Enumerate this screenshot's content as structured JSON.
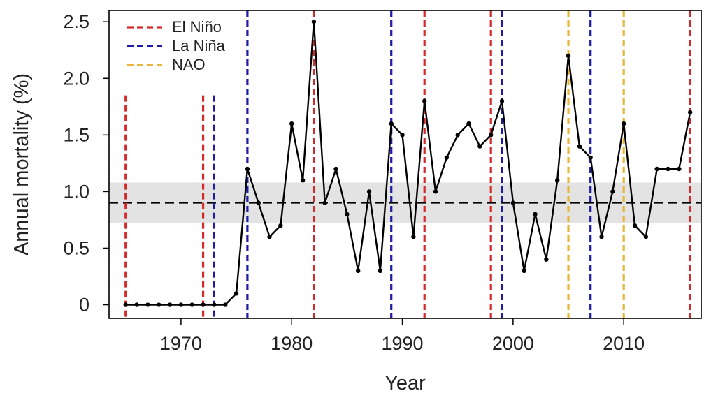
{
  "chart_data": {
    "type": "line",
    "title": "",
    "xlabel": "Year",
    "ylabel": "Annual mortality (%)",
    "xlim": [
      1963.5,
      1967.0
    ],
    "ylim": [
      -0.12,
      2.6
    ],
    "x_ticks": [
      1970,
      1980,
      1990,
      2000,
      2010
    ],
    "y_ticks": [
      0,
      0.5,
      1.0,
      1.5,
      2.0,
      2.5
    ],
    "y_tick_labels": [
      "0",
      "0.5",
      "1.0",
      "1.5",
      "2.0",
      "2.5"
    ],
    "grid": false,
    "legend_position": "top-left",
    "series": [
      {
        "color": "#000000",
        "x": [
          1965,
          1966,
          1967,
          1968,
          1969,
          1970,
          1971,
          1972,
          1973,
          1974,
          1975,
          1976,
          1977,
          1978,
          1979,
          1980,
          1981,
          1982,
          1983,
          1984,
          1985,
          1986,
          1987,
          1988,
          1989,
          1990,
          1991,
          1992,
          1993,
          1994,
          1995,
          1996,
          1997,
          1998,
          1999,
          2000,
          2001,
          2002,
          2003,
          2004,
          2005,
          2006,
          2007,
          2008,
          2009,
          2010,
          2011,
          2012,
          2013,
          2014,
          2015,
          2016
        ],
        "y": [
          0,
          0,
          0,
          0,
          0,
          0,
          0,
          0,
          0,
          0,
          0.1,
          1.2,
          0.9,
          0.6,
          0.7,
          1.6,
          1.1,
          2.5,
          0.9,
          1.2,
          0.8,
          0.3,
          1.0,
          0.3,
          1.6,
          1.5,
          0.6,
          1.8,
          1.0,
          1.3,
          1.5,
          1.6,
          1.4,
          1.5,
          1.8,
          0.9,
          0.3,
          0.8,
          0.4,
          1.1,
          2.2,
          1.4,
          1.3,
          0.6,
          1.0,
          1.6,
          0.7,
          0.6,
          1.2,
          1.2,
          1.2,
          1.7
        ]
      }
    ],
    "mean_line": {
      "y": 0.9,
      "style": "dashed",
      "color": "#000000"
    },
    "mean_band": {
      "y_low": 0.72,
      "y_high": 1.08,
      "color": "#e3e3e3"
    },
    "events": [
      {
        "type": "El Niño",
        "year": 1965,
        "color": "#d42a2a"
      },
      {
        "type": "El Niño",
        "year": 1972,
        "color": "#d42a2a"
      },
      {
        "type": "La Niña",
        "year": 1973,
        "color": "#1c1ca8"
      },
      {
        "type": "La Niña",
        "year": 1976,
        "color": "#1c1ca8"
      },
      {
        "type": "El Niño",
        "year": 1982,
        "color": "#d42a2a"
      },
      {
        "type": "La Niña",
        "year": 1989,
        "color": "#1c1ca8"
      },
      {
        "type": "El Niño",
        "year": 1992,
        "color": "#d42a2a"
      },
      {
        "type": "El Niño",
        "year": 1998,
        "color": "#d42a2a"
      },
      {
        "type": "La Niña",
        "year": 1999,
        "color": "#1c1ca8"
      },
      {
        "type": "NAO",
        "year": 2005,
        "color": "#e8b63a"
      },
      {
        "type": "La Niña",
        "year": 2007,
        "color": "#1c1ca8"
      },
      {
        "type": "NAO",
        "year": 2010,
        "color": "#e8b63a"
      },
      {
        "type": "El Niño",
        "year": 2016,
        "color": "#d42a2a"
      }
    ],
    "legend": [
      {
        "label": "El Niño",
        "color": "#d42a2a"
      },
      {
        "label": "La Niña",
        "color": "#1c1ca8"
      },
      {
        "label": "NAO",
        "color": "#e8b63a"
      }
    ]
  }
}
